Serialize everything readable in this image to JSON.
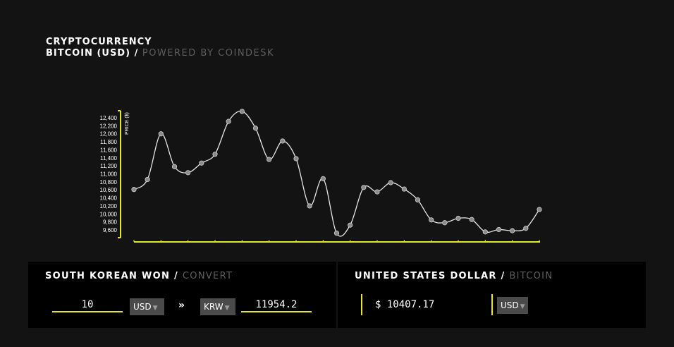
{
  "header": {
    "title": "CRYPTOCURRENCY",
    "subtitle_main": "BITCOIN (USD) /",
    "subtitle_muted": "POWERED BY COINDESK"
  },
  "chart_data": {
    "type": "line",
    "ylabel": "PRICE ($)",
    "ylim": [
      9500,
      12600
    ],
    "y_ticks": [
      "12,400",
      "12,200",
      "12,000",
      "11,800",
      "11,600",
      "11,400",
      "11,200",
      "11,000",
      "10,800",
      "10,600",
      "10,400",
      "10,200",
      "10,000",
      "9,800",
      "9,600"
    ],
    "y_tick_values": [
      12400,
      12200,
      12000,
      11800,
      11600,
      11400,
      11200,
      11000,
      10800,
      10600,
      10400,
      10200,
      10000,
      9800,
      9600
    ],
    "values": [
      10610,
      10860,
      12000,
      11180,
      11030,
      11270,
      11490,
      12310,
      12560,
      12140,
      11360,
      11820,
      11380,
      10200,
      10880,
      9520,
      9720,
      10660,
      10550,
      10780,
      10620,
      10350,
      9850,
      9780,
      9890,
      9860,
      9550,
      9610,
      9580,
      9640,
      10110
    ],
    "grid": false,
    "line_color": "#e6e6e6",
    "axis_color": "#e6e62a"
  },
  "converter": {
    "title_main": "SOUTH KOREAN WON /",
    "title_muted": "CONVERT",
    "from_amount": "10",
    "from_currency": "USD",
    "separator": "»",
    "to_currency": "KRW",
    "to_amount": "11954.2"
  },
  "usd_panel": {
    "title_main": "UNITED STATES DOLLAR /",
    "title_muted": "BITCOIN",
    "price": "$ 10407.17",
    "currency": "USD"
  },
  "colors": {
    "background": "#131313",
    "panel": "#000000",
    "accent": "#e6e62a",
    "muted_text": "#5e5e5e"
  }
}
